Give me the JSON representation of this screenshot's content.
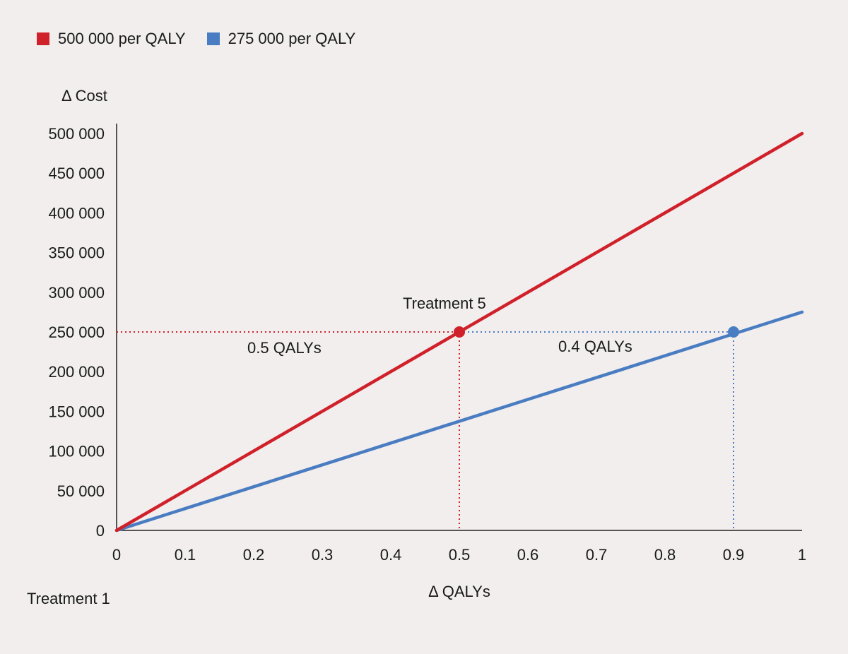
{
  "chart_data": {
    "type": "line",
    "xlabel": "Δ QALYs",
    "ylabel": "Δ Cost",
    "xlim": [
      0,
      1
    ],
    "ylim": [
      0,
      500000
    ],
    "x_ticks": [
      "0",
      "0.1",
      "0.2",
      "0.3",
      "0.4",
      "0.5",
      "0.6",
      "0.7",
      "0.8",
      "0.9",
      "1"
    ],
    "y_ticks": [
      "0",
      "50 000",
      "100 000",
      "150 000",
      "200 000",
      "250 000",
      "300 000",
      "350 000",
      "400 000",
      "450 000",
      "500 000"
    ],
    "grid": false,
    "legend_position": "top-left",
    "series": [
      {
        "name": "500 000 per QALY",
        "color": "#d0202a",
        "x": [
          0,
          1
        ],
        "y": [
          0,
          500000
        ]
      },
      {
        "name": "275 000 per QALY",
        "color": "#4a7cc2",
        "x": [
          0,
          1
        ],
        "y": [
          0,
          275000
        ]
      }
    ],
    "points": [
      {
        "series": 0,
        "x": 0.5,
        "y": 250000
      },
      {
        "series": 1,
        "x": 0.9,
        "y": 250000
      }
    ],
    "annotations": {
      "treatment_5": "Treatment 5",
      "treatment_1": "Treatment 1",
      "red_segment": "0.5 QALYs",
      "blue_segment": "0.4 QALYs"
    }
  }
}
